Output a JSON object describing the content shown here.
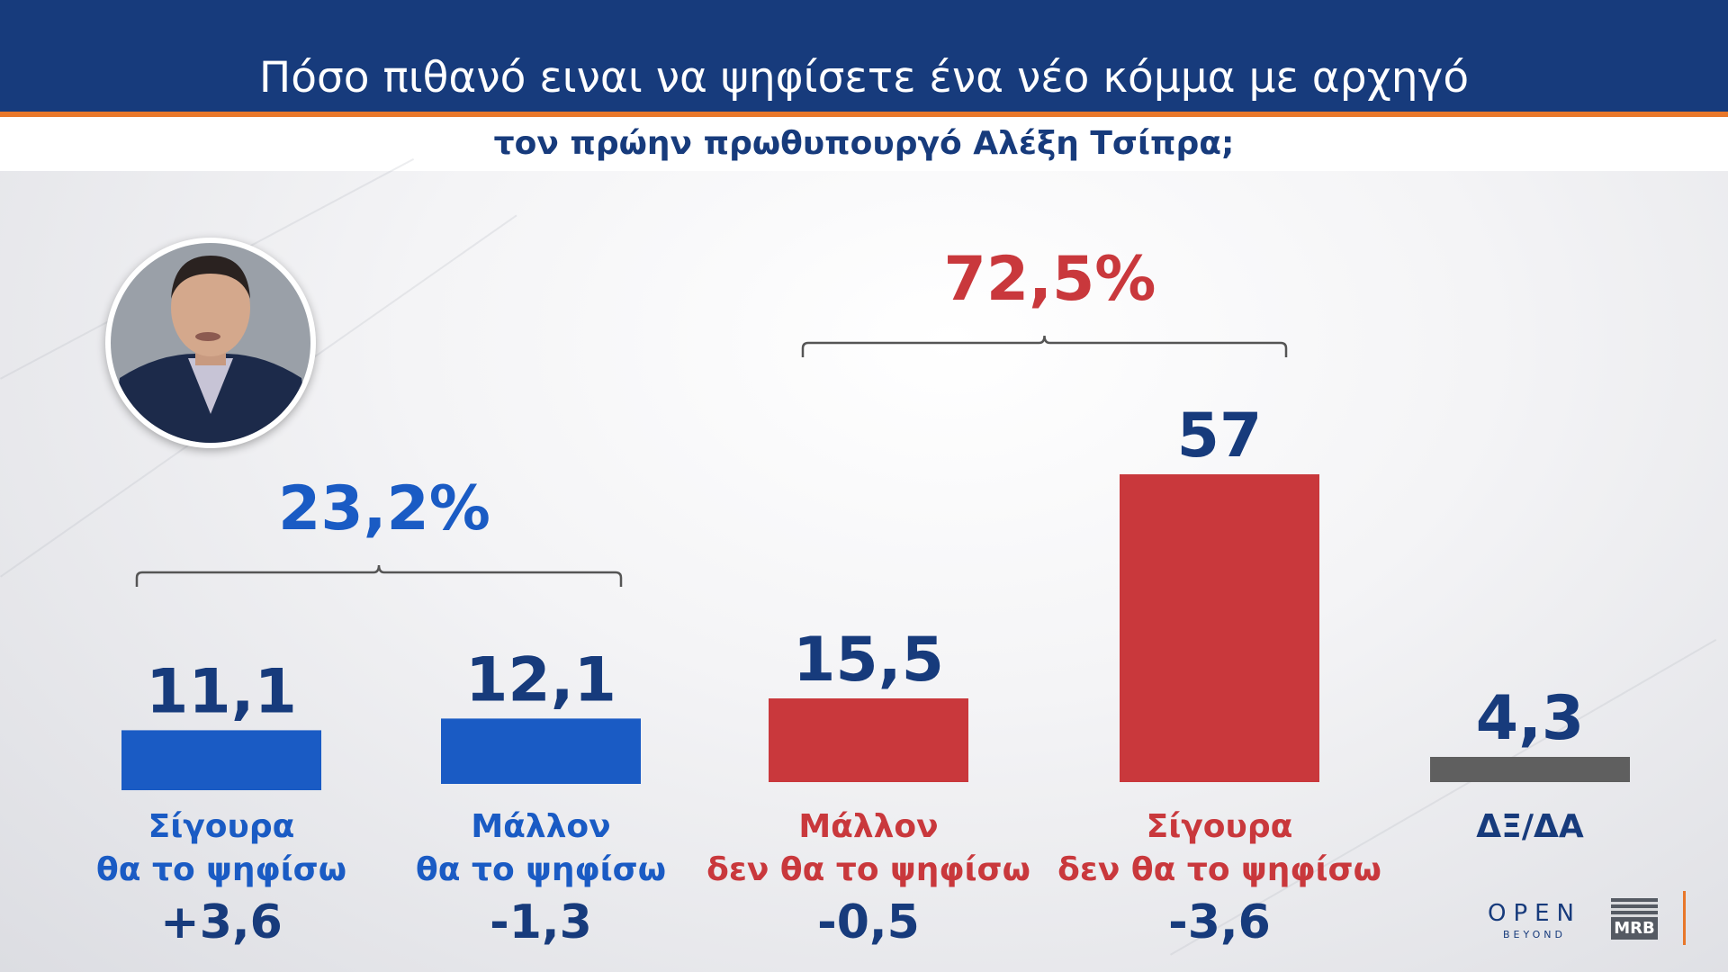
{
  "header": {
    "title": "Πόσο πιθανό ειναι να ψηφίσετε ένα νέο κόμμα με αρχηγό",
    "subtitle": "τον πρώην πρωθυπουργό Αλέξη Τσίπρα;"
  },
  "colors": {
    "blue": "#1a5bc4",
    "red": "#c9383c",
    "grey": "#5f5f5f",
    "navy": "#173b7c",
    "accent": "#e8772a"
  },
  "chart_data": {
    "type": "bar",
    "categories": [
      [
        "Σίγουρα",
        "θα το ψηφίσω"
      ],
      [
        "Μάλλον",
        "θα το ψηφίσω"
      ],
      [
        "Μάλλον",
        "δεν θα το ψηφίσω"
      ],
      [
        "Σίγουρα",
        "δεν θα το ψηφίσω"
      ],
      [
        "ΔΞ/ΔΑ"
      ]
    ],
    "values": [
      11.1,
      12.1,
      15.5,
      57,
      4.3
    ],
    "value_labels": [
      "11,1",
      "12,1",
      "15,5",
      "57",
      "4,3"
    ],
    "changes": [
      "+3,6",
      "-1,3",
      "-0,5",
      "-3,6",
      ""
    ],
    "bar_colors": [
      "blue",
      "blue",
      "red",
      "red",
      "grey"
    ],
    "groups": [
      {
        "label": "23,2%",
        "color": "blue",
        "from": 0,
        "to": 1
      },
      {
        "label": "72,5%",
        "color": "red",
        "from": 2,
        "to": 3
      }
    ],
    "ylim": [
      0,
      60
    ],
    "grid": false,
    "legend": "none"
  },
  "logos": {
    "open": "OPEN",
    "beyond": "BEYOND",
    "mrb": "MRB"
  }
}
